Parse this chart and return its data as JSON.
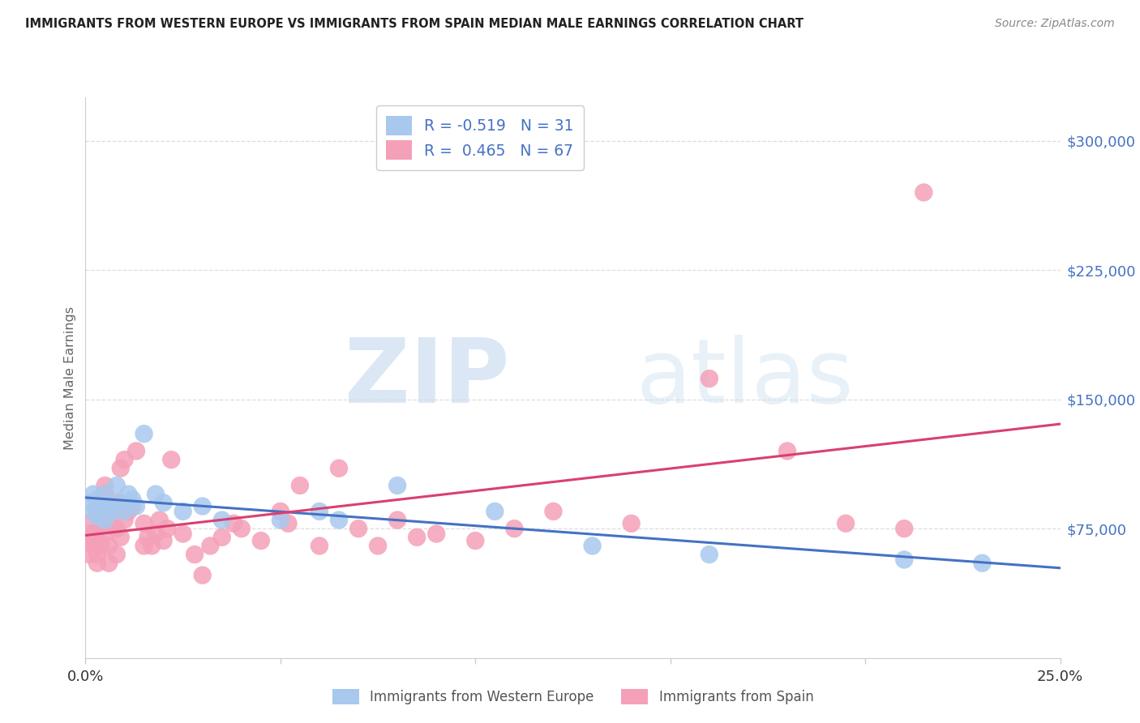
{
  "title": "IMMIGRANTS FROM WESTERN EUROPE VS IMMIGRANTS FROM SPAIN MEDIAN MALE EARNINGS CORRELATION CHART",
  "source": "Source: ZipAtlas.com",
  "ylabel": "Median Male Earnings",
  "series1_label": "Immigrants from Western Europe",
  "series1_color": "#a8c8ee",
  "series1_line_color": "#4472c4",
  "series1_R": -0.519,
  "series1_N": 31,
  "series2_label": "Immigrants from Spain",
  "series2_color": "#f4a0b8",
  "series2_line_color": "#d94070",
  "series2_R": 0.465,
  "series2_N": 67,
  "xlim": [
    0.0,
    0.25
  ],
  "ylim": [
    0,
    325000
  ],
  "yticks": [
    75000,
    150000,
    225000,
    300000
  ],
  "ytick_labels": [
    "$75,000",
    "$150,000",
    "$225,000",
    "$300,000"
  ],
  "background_color": "#ffffff",
  "grid_color": "#dddddd",
  "series1_x": [
    0.001,
    0.002,
    0.002,
    0.003,
    0.003,
    0.004,
    0.005,
    0.005,
    0.006,
    0.007,
    0.008,
    0.009,
    0.01,
    0.011,
    0.012,
    0.013,
    0.015,
    0.018,
    0.02,
    0.025,
    0.03,
    0.035,
    0.05,
    0.06,
    0.065,
    0.08,
    0.105,
    0.13,
    0.16,
    0.21,
    0.23
  ],
  "series1_y": [
    90000,
    95000,
    85000,
    92000,
    82000,
    88000,
    95000,
    80000,
    88000,
    85000,
    100000,
    90000,
    85000,
    95000,
    92000,
    88000,
    130000,
    95000,
    90000,
    85000,
    88000,
    80000,
    80000,
    85000,
    80000,
    100000,
    85000,
    65000,
    60000,
    57000,
    55000
  ],
  "series2_x": [
    0.001,
    0.001,
    0.001,
    0.002,
    0.002,
    0.002,
    0.003,
    0.003,
    0.003,
    0.003,
    0.004,
    0.004,
    0.004,
    0.005,
    0.005,
    0.005,
    0.006,
    0.006,
    0.006,
    0.007,
    0.007,
    0.008,
    0.008,
    0.008,
    0.009,
    0.009,
    0.01,
    0.01,
    0.011,
    0.012,
    0.013,
    0.015,
    0.015,
    0.016,
    0.017,
    0.018,
    0.019,
    0.02,
    0.021,
    0.022,
    0.025,
    0.028,
    0.03,
    0.032,
    0.035,
    0.038,
    0.04,
    0.045,
    0.05,
    0.052,
    0.055,
    0.06,
    0.065,
    0.07,
    0.075,
    0.08,
    0.085,
    0.09,
    0.1,
    0.11,
    0.12,
    0.14,
    0.16,
    0.18,
    0.195,
    0.21,
    0.215
  ],
  "series2_y": [
    72000,
    68000,
    60000,
    80000,
    65000,
    72000,
    85000,
    70000,
    60000,
    55000,
    78000,
    82000,
    65000,
    95000,
    100000,
    72000,
    80000,
    65000,
    55000,
    76000,
    85000,
    90000,
    75000,
    60000,
    110000,
    70000,
    80000,
    115000,
    85000,
    88000,
    120000,
    78000,
    65000,
    70000,
    65000,
    72000,
    80000,
    68000,
    75000,
    115000,
    72000,
    60000,
    48000,
    65000,
    70000,
    78000,
    75000,
    68000,
    85000,
    78000,
    100000,
    65000,
    110000,
    75000,
    65000,
    80000,
    70000,
    72000,
    68000,
    75000,
    85000,
    78000,
    162000,
    120000,
    78000,
    75000,
    270000
  ]
}
